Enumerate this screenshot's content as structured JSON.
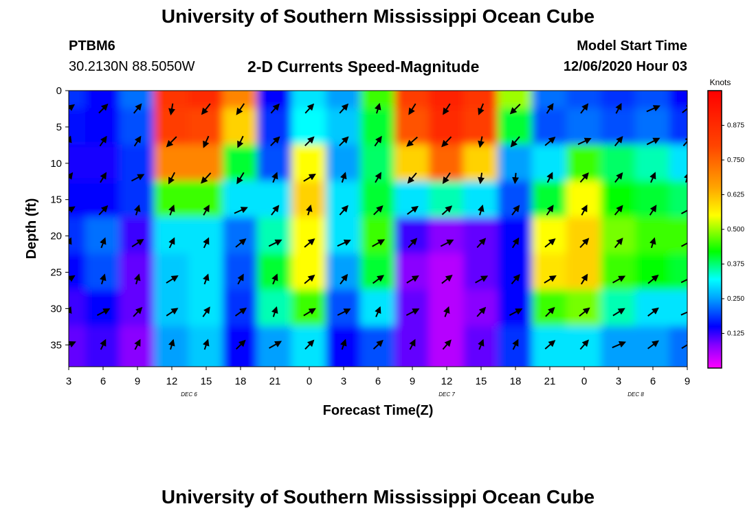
{
  "page": {
    "title_top": "University of Southern Mississippi Ocean Cube",
    "title_bottom": "University of Southern Mississippi Ocean Cube",
    "station": "PTBM6",
    "location": "30.2130N 88.5050W",
    "subtitle": "2-D Currents Speed-Magnitude",
    "model_start_label": "Model Start Time",
    "model_start_value": "12/06/2020 Hour 03"
  },
  "chart_data": {
    "type": "heatmap",
    "title": "2-D Currents Speed-Magnitude",
    "xlabel": "Forecast Time(Z)",
    "ylabel": "Depth (ft)",
    "x_ticks": [
      "3",
      "6",
      "9",
      "12",
      "15",
      "18",
      "21",
      "0",
      "3",
      "6",
      "9",
      "12",
      "15",
      "18",
      "21",
      "0",
      "3",
      "6",
      "9"
    ],
    "day_labels": [
      {
        "label": "DEC 6",
        "at_tick": 3.5
      },
      {
        "label": "DEC 7",
        "at_tick": 11
      },
      {
        "label": "DEC 8",
        "at_tick": 16.5
      }
    ],
    "y_ticks": [
      "0",
      "5",
      "10",
      "15",
      "20",
      "25",
      "30",
      "35"
    ],
    "ylim": [
      0,
      38
    ],
    "y_inverted": true,
    "colorbar": {
      "unit": "Knots",
      "range": [
        0,
        1.0
      ],
      "ticks": [
        "0.875",
        "0.750",
        "0.625",
        "0.500",
        "0.375",
        "0.250",
        "0.125"
      ],
      "colors": [
        "#ff00ff",
        "#8a00ff",
        "#0000ff",
        "#00a0ff",
        "#00ffff",
        "#00ff00",
        "#ffff00",
        "#ffa500",
        "#ff4500",
        "#ff0000"
      ]
    },
    "grid": false,
    "columns_x": [
      3,
      6,
      9,
      12,
      15,
      18,
      21,
      24,
      27,
      30,
      33,
      36,
      39,
      42,
      45,
      48,
      51,
      54,
      57
    ],
    "depths_ft": [
      0,
      5,
      10,
      15,
      20,
      25,
      30,
      35,
      38
    ],
    "speed_knots": [
      [
        0.18,
        0.15,
        0.22,
        0.85,
        0.88,
        0.7,
        0.15,
        0.3,
        0.25,
        0.45,
        0.82,
        0.9,
        0.85,
        0.5,
        0.22,
        0.2,
        0.18,
        0.2,
        0.15
      ],
      [
        0.16,
        0.15,
        0.2,
        0.82,
        0.8,
        0.6,
        0.18,
        0.32,
        0.28,
        0.4,
        0.78,
        0.88,
        0.82,
        0.4,
        0.2,
        0.22,
        0.2,
        0.22,
        0.18
      ],
      [
        0.14,
        0.14,
        0.18,
        0.7,
        0.7,
        0.4,
        0.2,
        0.55,
        0.25,
        0.38,
        0.6,
        0.75,
        0.6,
        0.25,
        0.3,
        0.45,
        0.38,
        0.35,
        0.3
      ],
      [
        0.15,
        0.15,
        0.18,
        0.45,
        0.45,
        0.3,
        0.3,
        0.6,
        0.3,
        0.4,
        0.3,
        0.35,
        0.3,
        0.2,
        0.4,
        0.55,
        0.42,
        0.4,
        0.38
      ],
      [
        0.18,
        0.22,
        0.12,
        0.3,
        0.3,
        0.22,
        0.35,
        0.55,
        0.3,
        0.45,
        0.12,
        0.08,
        0.1,
        0.15,
        0.55,
        0.6,
        0.48,
        0.45,
        0.45
      ],
      [
        0.15,
        0.2,
        0.1,
        0.28,
        0.3,
        0.2,
        0.4,
        0.55,
        0.25,
        0.4,
        0.08,
        0.05,
        0.1,
        0.15,
        0.58,
        0.6,
        0.45,
        0.42,
        0.4
      ],
      [
        0.12,
        0.15,
        0.1,
        0.28,
        0.3,
        0.18,
        0.35,
        0.45,
        0.2,
        0.3,
        0.1,
        0.05,
        0.08,
        0.15,
        0.45,
        0.48,
        0.35,
        0.3,
        0.3
      ],
      [
        0.1,
        0.12,
        0.08,
        0.25,
        0.28,
        0.15,
        0.25,
        0.3,
        0.15,
        0.2,
        0.1,
        0.05,
        0.1,
        0.18,
        0.3,
        0.3,
        0.25,
        0.25,
        0.22
      ],
      [
        0.1,
        0.12,
        0.08,
        0.25,
        0.28,
        0.15,
        0.25,
        0.3,
        0.15,
        0.2,
        0.1,
        0.05,
        0.1,
        0.18,
        0.3,
        0.3,
        0.25,
        0.25,
        0.22
      ]
    ]
  }
}
